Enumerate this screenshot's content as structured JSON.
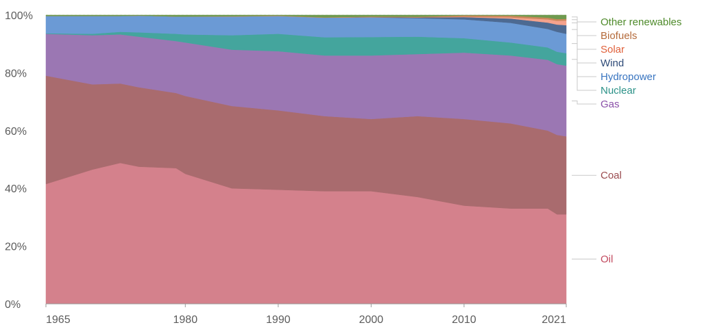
{
  "chart_data": {
    "type": "area",
    "stacked": true,
    "x": [
      1965,
      1970,
      1973,
      1975,
      1979,
      1980,
      1985,
      1990,
      1995,
      2000,
      2005,
      2010,
      2015,
      2019,
      2020,
      2021
    ],
    "x_ticks": [
      "1965",
      "1980",
      "1990",
      "2000",
      "2010",
      "2021"
    ],
    "y_ticks": [
      "0%",
      "20%",
      "40%",
      "60%",
      "80%",
      "100%"
    ],
    "ylim": [
      0,
      100
    ],
    "y_unit": "%",
    "grid": "horizontal-dotted",
    "legend_placement": "right",
    "series": [
      {
        "name": "Oil",
        "color": "#d4818c",
        "label_color": "#c2495e",
        "values": [
          41.5,
          46.5,
          48.8,
          47.5,
          47.0,
          45.0,
          40.0,
          39.5,
          39.0,
          39.0,
          37.0,
          34.0,
          33.0,
          33.0,
          31.0,
          31.0
        ]
      },
      {
        "name": "Coal",
        "color": "#a96b6e",
        "label_color": "#9a4a4e",
        "values": [
          37.5,
          29.5,
          27.5,
          27.5,
          26.0,
          27.0,
          28.5,
          27.5,
          26.0,
          25.0,
          28.0,
          30.0,
          29.5,
          27.0,
          27.5,
          27.0
        ]
      },
      {
        "name": "Gas",
        "color": "#9b77b3",
        "label_color": "#8a4fa8",
        "values": [
          14.5,
          17.0,
          17.0,
          17.5,
          18.0,
          18.5,
          19.5,
          20.5,
          21.0,
          22.0,
          21.5,
          23.0,
          23.5,
          24.5,
          24.5,
          24.5
        ]
      },
      {
        "name": "Nuclear",
        "color": "#44a59d",
        "label_color": "#2a9187",
        "values": [
          0.2,
          0.5,
          0.9,
          1.5,
          2.5,
          2.8,
          5.0,
          6.0,
          6.3,
          6.4,
          6.0,
          5.0,
          4.5,
          4.3,
          4.3,
          4.3
        ]
      },
      {
        "name": "Hydropower",
        "color": "#6b9ad5",
        "label_color": "#3874c0",
        "values": [
          6.0,
          6.2,
          5.5,
          5.8,
          6.0,
          6.2,
          6.5,
          6.2,
          6.8,
          6.8,
          6.4,
          6.5,
          6.8,
          6.4,
          6.9,
          6.7
        ]
      },
      {
        "name": "Wind",
        "color": "#4d6a92",
        "label_color": "#2e4b78",
        "values": [
          0,
          0,
          0,
          0,
          0,
          0,
          0,
          0,
          0,
          0.1,
          0.3,
          0.8,
          1.5,
          2.2,
          2.5,
          3.0
        ]
      },
      {
        "name": "Solar",
        "color": "#f4a28c",
        "label_color": "#e0603a",
        "values": [
          0,
          0,
          0,
          0,
          0,
          0,
          0,
          0,
          0,
          0,
          0,
          0.1,
          0.4,
          1.1,
          1.3,
          1.6
        ]
      },
      {
        "name": "Biofuels",
        "color": "#c9875a",
        "label_color": "#b46a3a",
        "values": [
          0,
          0,
          0,
          0,
          0,
          0,
          0.1,
          0.1,
          0.1,
          0.2,
          0.2,
          0.5,
          0.6,
          0.6,
          0.6,
          0.6
        ]
      },
      {
        "name": "Other renewables",
        "color": "#6f9a4f",
        "label_color": "#4e8a2a",
        "values": [
          0.3,
          0.3,
          0.3,
          0.2,
          0.5,
          0.5,
          0.4,
          0.2,
          0.8,
          0.5,
          0.6,
          0.1,
          0.2,
          0.9,
          1.4,
          1.3
        ]
      }
    ]
  }
}
